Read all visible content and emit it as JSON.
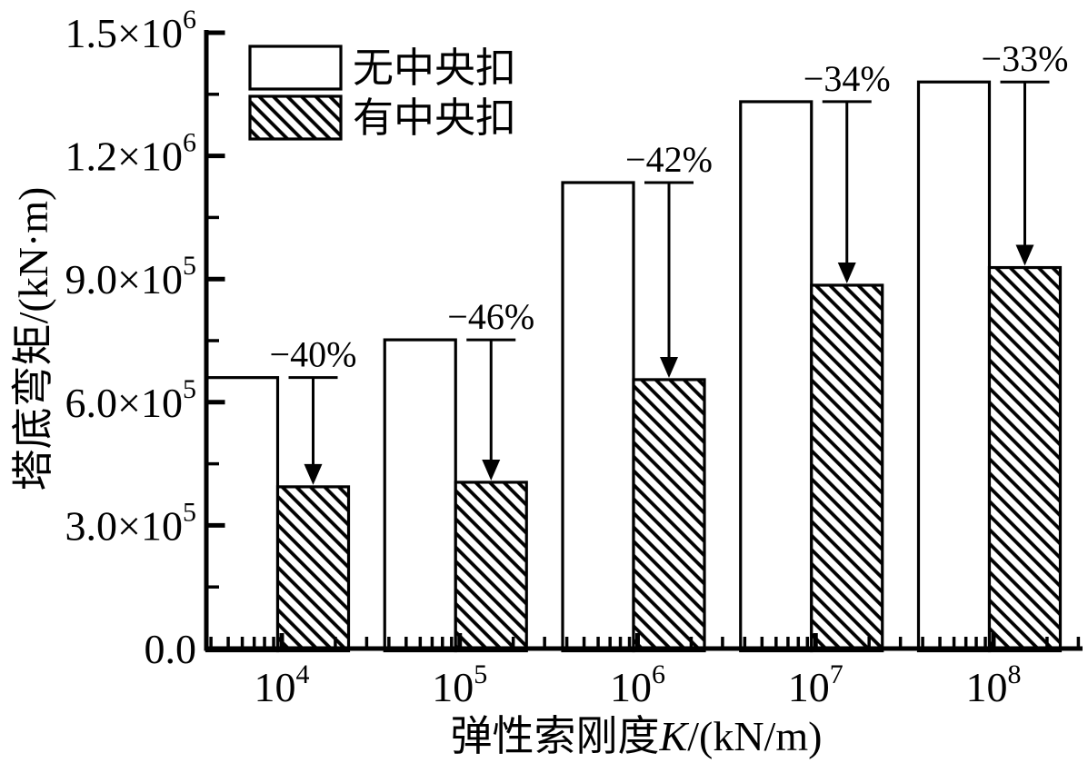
{
  "figure": {
    "background": "#ffffff",
    "ink_color": "#000000"
  },
  "chart_data": {
    "type": "bar",
    "title": "",
    "xlabel": "弹性索刚度K/(kN/m)",
    "xlabel_parts": {
      "prefix": "弹性索刚度",
      "variable": "K",
      "unit": "/(kN/m)"
    },
    "ylabel": "塔底弯矩/(kN·m)",
    "x_scale": "log",
    "x_values": [
      10000,
      100000,
      1000000,
      10000000,
      100000000
    ],
    "x_tick_labels": [
      {
        "base": "10",
        "exponent": "4"
      },
      {
        "base": "10",
        "exponent": "5"
      },
      {
        "base": "10",
        "exponent": "6"
      },
      {
        "base": "10",
        "exponent": "7"
      },
      {
        "base": "10",
        "exponent": "8"
      }
    ],
    "ylim": [
      0,
      1500000
    ],
    "y_major_step": 300000,
    "y_minor_step": 150000,
    "y_tick_labels": [
      {
        "mantissa": "0.0",
        "exponent": ""
      },
      {
        "mantissa": "3.0×10",
        "exponent": "5"
      },
      {
        "mantissa": "6.0×10",
        "exponent": "5"
      },
      {
        "mantissa": "9.0×10",
        "exponent": "5"
      },
      {
        "mantissa": "1.2×10",
        "exponent": "6"
      },
      {
        "mantissa": "1.5×10",
        "exponent": "6"
      }
    ],
    "grid": false,
    "legend_position": "top-left",
    "series": [
      {
        "name": "无中央扣",
        "style": "open",
        "values": [
          660000,
          752000,
          1135000,
          1332000,
          1380000
        ]
      },
      {
        "name": "有中央扣",
        "style": "hatched",
        "values": [
          394000,
          405000,
          655000,
          885000,
          928000
        ]
      }
    ],
    "annotations": [
      {
        "label": "−40%"
      },
      {
        "label": "−46%"
      },
      {
        "label": "−42%"
      },
      {
        "label": "−34%"
      },
      {
        "label": "−33%"
      }
    ]
  }
}
